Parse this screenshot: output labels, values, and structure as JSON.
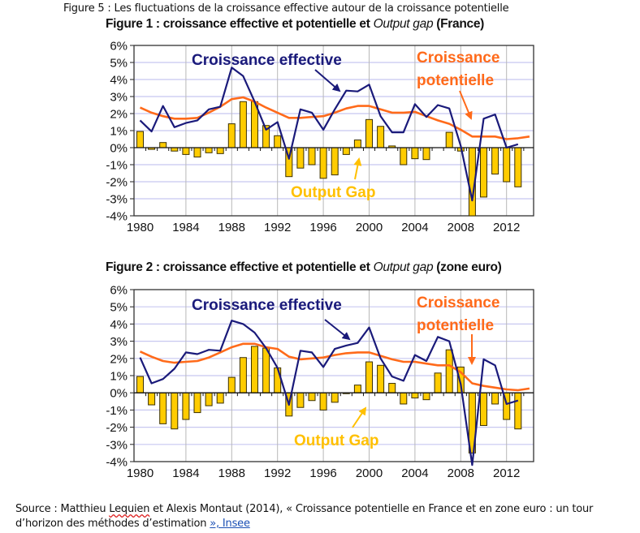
{
  "page": {
    "figure_title": "Figure 5 : Les fluctuations de la croissance effective autour de la croissance potentielle",
    "source": {
      "prefix": "Source : Matthieu ",
      "author_flagged": "Lequien",
      "middle": " et Alexis Montaut (2014), « Croissance potentielle en France et en zone euro : un tour d’horizon des méthodes d’estimation ",
      "link_text": "», Insee"
    }
  },
  "colors": {
    "effective": "#1a1a7a",
    "potential": "#ff6a1a",
    "gap_fill": "#ffcc00",
    "gap_stroke": "#3a3000",
    "gap_label": "#ffc000",
    "grid_h": "#c8c8f0",
    "grid_v": "#b8b8b8"
  },
  "chart_data": [
    {
      "type": "bar+line",
      "title_main": "Figure 1 : croissance effective et potentielle et ",
      "title_italic": "Output gap",
      "title_suffix": " (France)",
      "xlabel": "",
      "ylabel": "",
      "ylim": [
        -4,
        6
      ],
      "yticks": [
        "6%",
        "5%",
        "4%",
        "3%",
        "2%",
        "1%",
        "0%",
        "-1%",
        "-2%",
        "-3%",
        "-4%"
      ],
      "ytick_values": [
        6,
        5,
        4,
        3,
        2,
        1,
        0,
        -1,
        -2,
        -3,
        -4
      ],
      "xticks": [
        "1980",
        "1984",
        "1988",
        "1992",
        "1996",
        "2000",
        "2004",
        "2008",
        "2012"
      ],
      "xtick_values": [
        1980,
        1984,
        1988,
        1992,
        1996,
        2000,
        2004,
        2008,
        2012
      ],
      "grid": true,
      "years": [
        1980,
        1981,
        1982,
        1983,
        1984,
        1985,
        1986,
        1987,
        1988,
        1989,
        1990,
        1991,
        1992,
        1993,
        1994,
        1995,
        1996,
        1997,
        1998,
        1999,
        2000,
        2001,
        2002,
        2003,
        2004,
        2005,
        2006,
        2007,
        2008,
        2009,
        2010,
        2011,
        2012,
        2013,
        2014
      ],
      "series": [
        {
          "name": "Output Gap",
          "kind": "bar",
          "values": [
            0.95,
            -0.1,
            0.3,
            -0.2,
            -0.4,
            -0.55,
            -0.3,
            -0.35,
            1.4,
            2.7,
            2.7,
            1.3,
            0.7,
            -1.7,
            -1.2,
            -1.0,
            -1.8,
            -1.6,
            -0.4,
            0.45,
            1.65,
            1.25,
            0.1,
            -1.0,
            -0.65,
            -0.7,
            null,
            0.9,
            -0.2,
            -4.0,
            -2.9,
            -1.55,
            -2.0,
            -2.3,
            null
          ]
        },
        {
          "name": "Croissance effective",
          "kind": "line",
          "values": [
            1.6,
            0.95,
            2.45,
            1.2,
            1.45,
            1.6,
            2.25,
            2.4,
            4.7,
            4.2,
            2.7,
            1.05,
            1.5,
            -0.65,
            2.25,
            2.05,
            1.05,
            2.25,
            3.35,
            3.3,
            3.7,
            1.85,
            0.9,
            0.9,
            2.55,
            1.8,
            2.5,
            2.3,
            0.1,
            -3.1,
            1.7,
            1.95,
            0.0,
            0.2,
            null
          ]
        },
        {
          "name": "Croissance potentielle",
          "kind": "line",
          "values": [
            2.35,
            2.05,
            1.85,
            1.7,
            1.7,
            1.75,
            2.05,
            2.4,
            2.85,
            2.95,
            2.7,
            2.35,
            2.05,
            1.75,
            1.75,
            1.8,
            1.85,
            2.05,
            2.3,
            2.45,
            2.45,
            2.25,
            2.05,
            2.05,
            2.1,
            1.85,
            1.6,
            1.4,
            1.05,
            0.65,
            0.65,
            0.65,
            0.5,
            0.55,
            0.65
          ]
        }
      ],
      "annotations": [
        {
          "text": "Croissance effective",
          "color_key": "effective",
          "position": "top-left"
        },
        {
          "text_lines": [
            "Croissance",
            "potentielle"
          ],
          "color_key": "potential",
          "position": "top-right"
        },
        {
          "text": "Output Gap",
          "color_key": "gap_label",
          "position": "bottom-center"
        }
      ]
    },
    {
      "type": "bar+line",
      "title_main": "Figure 2 : croissance effective et potentielle et ",
      "title_italic": "Output gap",
      "title_suffix": " (zone euro)",
      "xlabel": "",
      "ylabel": "",
      "ylim": [
        -4,
        6
      ],
      "yticks": [
        "6%",
        "5%",
        "4%",
        "3%",
        "2%",
        "1%",
        "0%",
        "-1%",
        "-2%",
        "-3%",
        "-4%"
      ],
      "ytick_values": [
        6,
        5,
        4,
        3,
        2,
        1,
        0,
        -1,
        -2,
        -3,
        -4
      ],
      "xticks": [
        "1980",
        "1984",
        "1988",
        "1992",
        "1996",
        "2000",
        "2004",
        "2008",
        "2012"
      ],
      "xtick_values": [
        1980,
        1984,
        1988,
        1992,
        1996,
        2000,
        2004,
        2008,
        2012
      ],
      "grid": true,
      "years": [
        1980,
        1981,
        1982,
        1983,
        1984,
        1985,
        1986,
        1987,
        1988,
        1989,
        1990,
        1991,
        1992,
        1993,
        1994,
        1995,
        1996,
        1997,
        1998,
        1999,
        2000,
        2001,
        2002,
        2003,
        2004,
        2005,
        2006,
        2007,
        2008,
        2009,
        2010,
        2011,
        2012,
        2013,
        2014
      ],
      "series": [
        {
          "name": "Output Gap",
          "kind": "bar",
          "values": [
            0.95,
            -0.7,
            -1.8,
            -2.1,
            -1.55,
            -1.15,
            -0.75,
            -0.6,
            0.9,
            2.05,
            2.7,
            2.6,
            1.45,
            -1.35,
            -0.85,
            -0.45,
            -1.0,
            -0.55,
            -0.05,
            0.45,
            1.8,
            1.6,
            0.55,
            -0.65,
            -0.3,
            -0.4,
            1.15,
            2.5,
            1.5,
            -3.5,
            -1.9,
            -0.65,
            -1.55,
            -2.1,
            null
          ]
        },
        {
          "name": "Croissance effective",
          "kind": "line",
          "values": [
            2.05,
            0.55,
            0.8,
            1.4,
            2.35,
            2.25,
            2.5,
            2.45,
            4.2,
            4.0,
            3.5,
            2.6,
            1.45,
            -0.7,
            2.45,
            2.35,
            1.5,
            2.55,
            2.75,
            2.9,
            3.8,
            2.0,
            0.95,
            0.7,
            2.2,
            1.85,
            3.25,
            3.0,
            0.5,
            -4.2,
            1.95,
            1.6,
            -0.65,
            -0.45,
            null
          ]
        },
        {
          "name": "Croissance potentielle",
          "kind": "line",
          "values": [
            2.4,
            2.1,
            1.85,
            1.75,
            1.8,
            1.85,
            2.05,
            2.35,
            2.65,
            2.85,
            2.85,
            2.65,
            2.55,
            2.1,
            1.95,
            2.0,
            2.05,
            2.2,
            2.3,
            2.35,
            2.35,
            2.15,
            1.95,
            1.8,
            1.8,
            1.7,
            1.6,
            1.6,
            1.2,
            0.55,
            0.4,
            0.3,
            0.2,
            0.15,
            0.25
          ]
        }
      ],
      "annotations": [
        {
          "text": "Croissance effective",
          "color_key": "effective",
          "position": "top-left"
        },
        {
          "text_lines": [
            "Croissance",
            "potentielle"
          ],
          "color_key": "potential",
          "position": "top-right"
        },
        {
          "text": "Output Gap",
          "color_key": "gap_label",
          "position": "bottom-center"
        }
      ]
    }
  ]
}
